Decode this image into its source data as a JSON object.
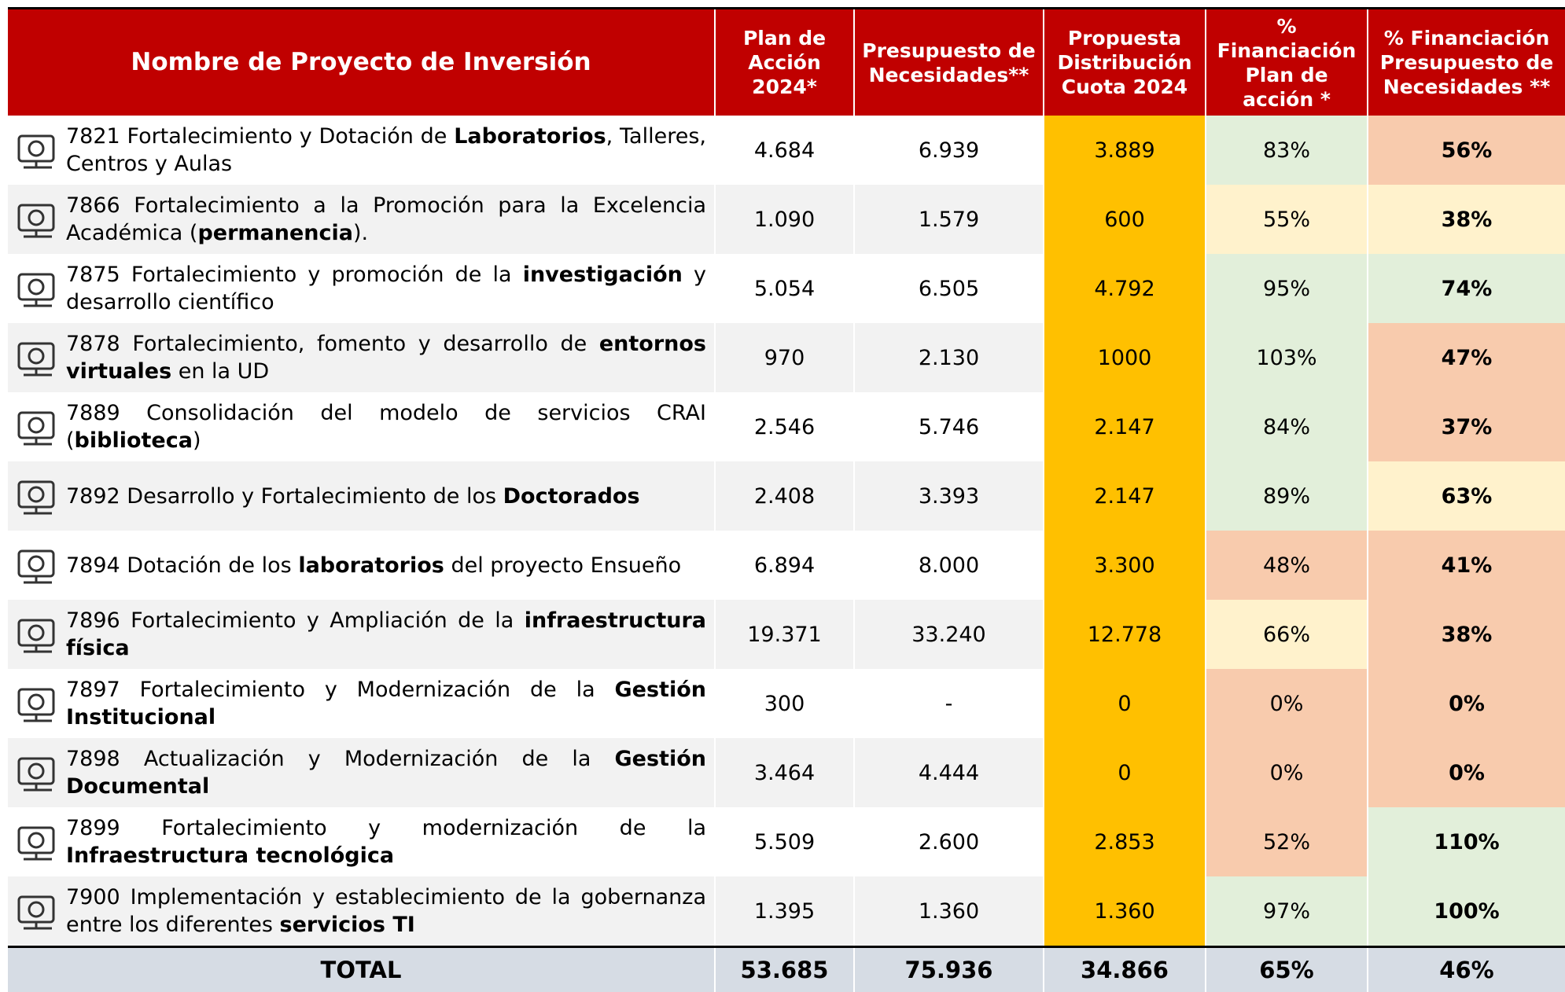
{
  "header": {
    "columns": [
      "Nombre de Proyecto de Inversión",
      "Plan de Acción 2024*",
      "Presupuesto de Necesidades**",
      "Propuesta Distribución Cuota 2024",
      "% Financiación Plan de acción *",
      "% Financiación Presupuesto de Necesidades **"
    ]
  },
  "table": {
    "rows": [
      {
        "name": [
          {
            "text": "7821 Fortalecimiento y Dotación de "
          },
          {
            "text": "Laboratorios",
            "bold": true
          },
          {
            "text": ", Talleres, Centros y Aulas"
          }
        ],
        "cells": [
          "4.684",
          "6.939",
          "3.889",
          "83%",
          "56%"
        ],
        "fills": [
          "#e2efda",
          "#f8cbad"
        ]
      },
      {
        "name": [
          {
            "text": "7866 Fortalecimiento a la Promoción para la Excelencia Académica ("
          },
          {
            "text": "permanencia",
            "bold": true
          },
          {
            "text": ")."
          }
        ],
        "cells": [
          "1.090",
          "1.579",
          "600",
          "55%",
          "38%"
        ],
        "fills": [
          "#fff2cc",
          "#fff2cc"
        ]
      },
      {
        "name": [
          {
            "text": "7875 Fortalecimiento y promoción de la "
          },
          {
            "text": "investigación",
            "bold": true
          },
          {
            "text": " y desarrollo científico"
          }
        ],
        "cells": [
          "5.054",
          "6.505",
          "4.792",
          "95%",
          "74%"
        ],
        "fills": [
          "#e2efda",
          "#e2efda"
        ]
      },
      {
        "name": [
          {
            "text": "7878 Fortalecimiento, fomento y desarrollo de "
          },
          {
            "text": "entornos virtuales",
            "bold": true
          },
          {
            "text": " en la UD"
          }
        ],
        "cells": [
          "970",
          "2.130",
          "1000",
          "103%",
          "47%"
        ],
        "fills": [
          "#e2efda",
          "#f8cbad"
        ]
      },
      {
        "name": [
          {
            "text": "7889 Consolidación del modelo de servicios CRAI ("
          },
          {
            "text": "biblioteca",
            "bold": true
          },
          {
            "text": ")"
          }
        ],
        "cells": [
          "2.546",
          "5.746",
          "2.147",
          "84%",
          "37%"
        ],
        "fills": [
          "#e2efda",
          "#f8cbad"
        ]
      },
      {
        "name": [
          {
            "text": "7892 Desarrollo y Fortalecimiento de los "
          },
          {
            "text": "Doctorados",
            "bold": true
          }
        ],
        "cells": [
          "2.408",
          "3.393",
          "2.147",
          "89%",
          "63%"
        ],
        "fills": [
          "#e2efda",
          "#fff2cc"
        ]
      },
      {
        "name": [
          {
            "text": "7894 Dotación de los "
          },
          {
            "text": "laboratorios",
            "bold": true
          },
          {
            "text": " del proyecto Ensueño"
          }
        ],
        "cells": [
          "6.894",
          "8.000",
          "3.300",
          "48%",
          "41%"
        ],
        "fills": [
          "#f8cbad",
          "#f8cbad"
        ]
      },
      {
        "name": [
          {
            "text": "7896 Fortalecimiento y Ampliación de la "
          },
          {
            "text": "infraestructura física",
            "bold": true
          }
        ],
        "cells": [
          "19.371",
          "33.240",
          "12.778",
          "66%",
          "38%"
        ],
        "fills": [
          "#fff2cc",
          "#f8cbad"
        ]
      },
      {
        "name": [
          {
            "text": "7897 Fortalecimiento y Modernización de la "
          },
          {
            "text": "Gestión Institucional",
            "bold": true
          }
        ],
        "cells": [
          "300",
          "-",
          "0",
          "0%",
          "0%"
        ],
        "fills": [
          "#f8cbad",
          "#f8cbad"
        ]
      },
      {
        "name": [
          {
            "text": "7898 Actualización y Modernización de la "
          },
          {
            "text": "Gestión Documental",
            "bold": true
          }
        ],
        "cells": [
          "3.464",
          "4.444",
          "0",
          "0%",
          "0%"
        ],
        "fills": [
          "#f8cbad",
          "#f8cbad"
        ]
      },
      {
        "name": [
          {
            "text": "7899 Fortalecimiento y modernización de la "
          },
          {
            "text": "Infraestructura tecnológica",
            "bold": true
          }
        ],
        "cells": [
          "5.509",
          "2.600",
          "2.853",
          "52%",
          "110%"
        ],
        "fills": [
          "#f8cbad",
          "#e2efda"
        ]
      },
      {
        "name": [
          {
            "text": "7900 Implementación y establecimiento de la gobernanza entre los diferentes "
          },
          {
            "text": "servicios TI",
            "bold": true
          }
        ],
        "cells": [
          "1.395",
          "1.360",
          "1.360",
          "97%",
          "100%"
        ],
        "fills": [
          "#e2efda",
          "#e2efda"
        ]
      }
    ],
    "total": {
      "label": "TOTAL",
      "cells": [
        "53.685",
        "75.936",
        "34.866",
        "65%",
        "46%"
      ]
    }
  }
}
